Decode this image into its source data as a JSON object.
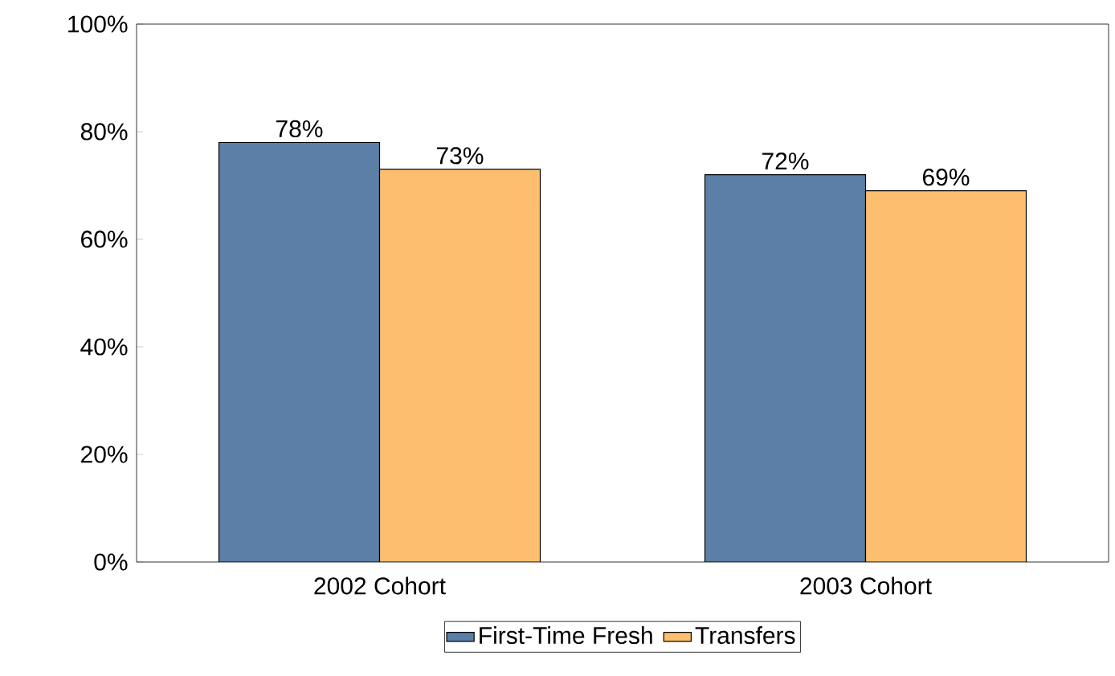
{
  "chart_data": {
    "type": "bar",
    "categories": [
      "2002 Cohort",
      "2003  Cohort"
    ],
    "series": [
      {
        "name": "First-Time Fresh",
        "color": "#5b7fa7",
        "values": [
          78,
          72
        ],
        "value_labels": [
          "78%",
          "72%"
        ]
      },
      {
        "name": "Transfers",
        "color": "#fdbf6f",
        "values": [
          73,
          69
        ],
        "value_labels": [
          "73%",
          "69%"
        ]
      }
    ],
    "ylim": [
      0,
      100
    ],
    "yticks": [
      {
        "value": 0,
        "label": "0%"
      },
      {
        "value": 20,
        "label": "20%"
      },
      {
        "value": 40,
        "label": "40%"
      },
      {
        "value": 60,
        "label": "60%"
      },
      {
        "value": 80,
        "label": "80%"
      },
      {
        "value": 100,
        "label": "100%"
      }
    ],
    "grid": false,
    "legend": "bottom"
  }
}
